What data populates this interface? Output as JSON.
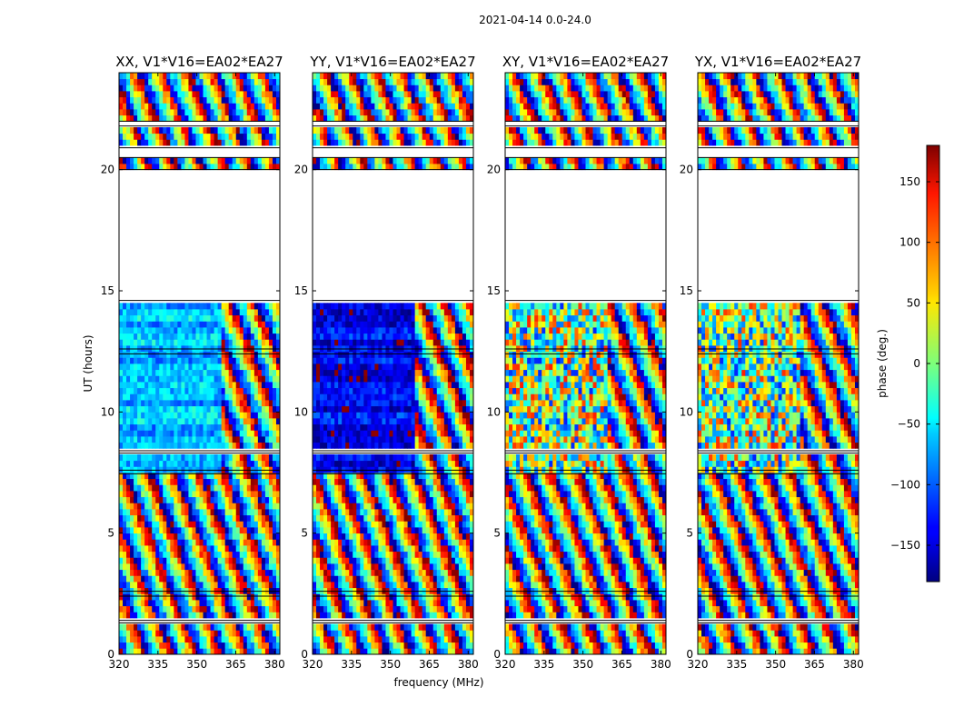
{
  "chart_data": {
    "type": "heatmap",
    "title": "2021-04-14 0.0-24.0",
    "xlabel": "frequency (MHz)",
    "ylabel": "UT (hours)",
    "xlim": [
      320,
      382
    ],
    "ylim": [
      0,
      24
    ],
    "x_ticks": [
      320,
      335,
      350,
      365,
      380
    ],
    "y_ticks": [
      0,
      5,
      10,
      15,
      20
    ],
    "panels": [
      {
        "title": "XX, V1*V16=EA02*EA27",
        "dominant_phase_deg": -70
      },
      {
        "title": "YY, V1*V16=EA02*EA27",
        "dominant_phase_deg": -140
      },
      {
        "title": "XY, V1*V16=EA02*EA27",
        "dominant_phase_deg": 0
      },
      {
        "title": "YX, V1*V16=EA02*EA27",
        "dominant_phase_deg": 0
      }
    ],
    "data_gaps_ut_hours": [
      [
        1.3,
        1.4
      ],
      [
        2.4,
        2.6
      ],
      [
        7.45,
        7.6
      ],
      [
        8.3,
        8.4
      ],
      [
        12.4,
        12.6
      ],
      [
        14.6,
        20.0
      ],
      [
        20.5,
        20.9
      ],
      [
        21.8,
        22.0
      ]
    ],
    "colorbar": {
      "label": "phase (deg.)",
      "colormap": "jet",
      "range": [
        -180,
        180
      ],
      "ticks": [
        150,
        100,
        50,
        0,
        -50,
        -100,
        -150
      ],
      "tick_labels": [
        "150",
        "100",
        "50",
        "0",
        "−50",
        "−100",
        "−150"
      ]
    }
  }
}
